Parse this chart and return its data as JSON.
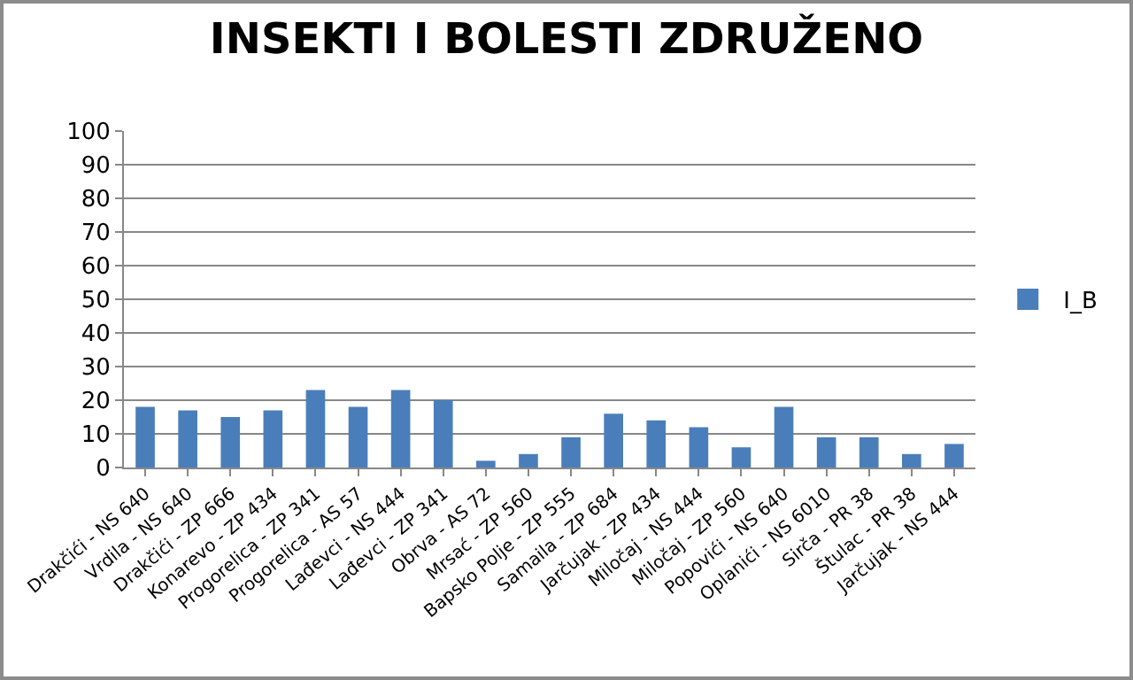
{
  "chart_data": {
    "type": "bar",
    "title": "INSEKTI I BOLESTI ZDRUŽENO",
    "categories": [
      "Drakčići - NS 640",
      "Vrdila - NS 640",
      "Drakčići - ZP 666",
      "Konarevo - ZP 434",
      "Progorelica - ZP 341",
      "Progorelica - AS 57",
      "Lađevci - NS 444",
      "Lađevci - ZP 341",
      "Obrva - AS 72",
      "Mrsać - ZP 560",
      "Bapsko Polje - ZP 555",
      "Samaila - ZP 684",
      "Jarčujak - ZP 434",
      "Miločaj - NS 444",
      "Miločaj - ZP 560",
      "Popovići - NS 640",
      "Oplanići - NS 6010",
      "Sirča - PR 38",
      "Štulac - PR 38",
      "Jarčujak - NS 444"
    ],
    "series": [
      {
        "name": "I_B",
        "color": "#4a7ebb",
        "values": [
          18,
          17,
          15,
          17,
          23,
          18,
          23,
          20,
          2,
          4,
          9,
          16,
          14,
          12,
          6,
          18,
          9,
          9,
          4,
          7
        ]
      }
    ],
    "ylim": [
      0,
      100
    ],
    "yticks": [
      0,
      10,
      20,
      30,
      40,
      50,
      60,
      70,
      80,
      90,
      100
    ],
    "grid": "y",
    "legend": "right"
  }
}
